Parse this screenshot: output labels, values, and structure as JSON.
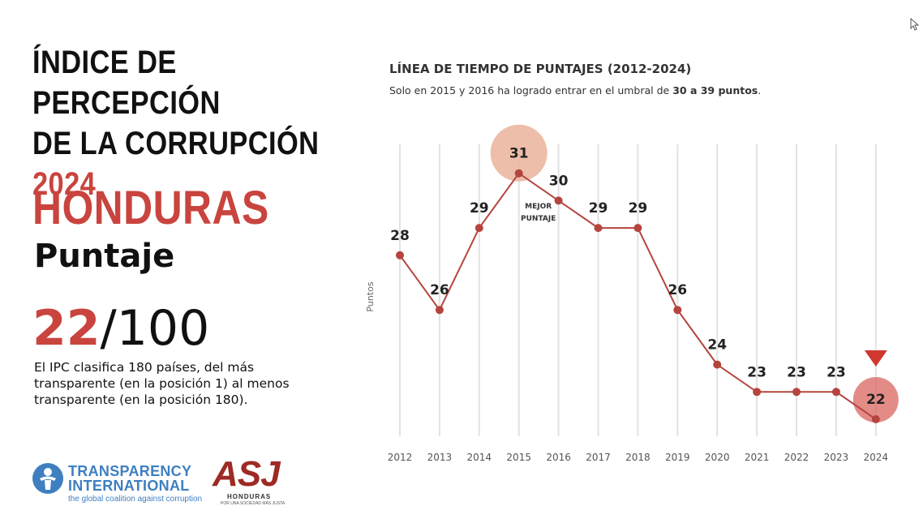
{
  "header": {
    "title_line1": "ÍNDICE DE PERCEPCIÓN",
    "title_line2": "DE LA CORRUPCIÓN",
    "title_year": "2024"
  },
  "country": "HONDURAS",
  "score_label": "Puntaje",
  "score_value": "22",
  "score_max": "/100",
  "description": "El IPC clasifica 180 países, del más transparente (en la posición 1) al menos transparente (en la posición 180).",
  "chart_header": {
    "title": "LÍNEA DE TIEMPO DE PUNTAJES (2012-2024)",
    "subtitle_prefix": "Solo en 2015 y 2016 ha logrado entrar en el umbral de ",
    "subtitle_bold": "30 a 39 puntos",
    "subtitle_suffix": "."
  },
  "chart_data": {
    "type": "line",
    "title": "LÍNEA DE TIEMPO DE PUNTAJES (2012-2024)",
    "ylabel": "Puntos",
    "xlabel": "",
    "categories": [
      "2012",
      "2013",
      "2014",
      "2015",
      "2016",
      "2017",
      "2018",
      "2019",
      "2020",
      "2021",
      "2022",
      "2023",
      "2024"
    ],
    "values": [
      28,
      26,
      29,
      31,
      30,
      29,
      29,
      26,
      24,
      23,
      23,
      23,
      22
    ],
    "ylim": [
      20,
      33
    ],
    "grid": "vertical",
    "annotations": [
      {
        "category": "2015",
        "text_line1": "MEJOR",
        "text_line2": "PUNTAJE"
      }
    ],
    "highlight_categories": [
      "2015",
      "2024"
    ],
    "line_color": "#b5443e",
    "highlight_color_best": "#eab39a",
    "highlight_color_current": "#d9665f",
    "marker_latest": "down-triangle"
  },
  "logos": {
    "ti_name_line1": "TRANSPARENCY",
    "ti_name_line2": "INTERNATIONAL",
    "ti_tagline": "the global coalition against corruption",
    "asj_name": "ASJ",
    "asj_sub": "HONDURAS",
    "asj_tagline": "POR UNA SOCIEDAD MÁS JUSTA"
  },
  "colors": {
    "accent": "#c9443e",
    "ti_blue": "#3f7fc0",
    "asj_red": "#9e2a24"
  }
}
